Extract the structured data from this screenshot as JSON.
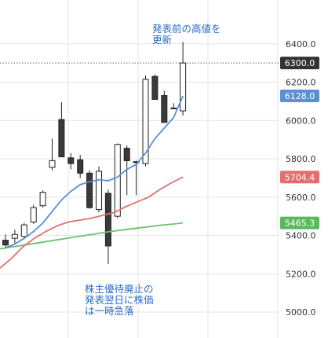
{
  "chart_data": {
    "type": "candlestick",
    "ylim": [
      4900,
      6500
    ],
    "y_ticks": [
      5000,
      5200,
      5400,
      5600,
      5800,
      6000,
      6200,
      6400
    ],
    "y_tick_labels": [
      "5000.0",
      "5200.0",
      "5400.0",
      "5600.0",
      "5800.0",
      "6000.0",
      "6200.0",
      "6400.0"
    ],
    "candles": [
      {
        "o": 5375,
        "h": 5405,
        "l": 5330,
        "c": 5350
      },
      {
        "o": 5385,
        "h": 5430,
        "l": 5360,
        "c": 5405
      },
      {
        "o": 5395,
        "h": 5465,
        "l": 5380,
        "c": 5455
      },
      {
        "o": 5470,
        "h": 5560,
        "l": 5460,
        "c": 5545
      },
      {
        "o": 5555,
        "h": 5635,
        "l": 5545,
        "c": 5625
      },
      {
        "o": 5755,
        "h": 5905,
        "l": 5740,
        "c": 5790
      },
      {
        "o": 6005,
        "h": 6095,
        "l": 5810,
        "c": 5810
      },
      {
        "o": 5805,
        "h": 5830,
        "l": 5745,
        "c": 5775
      },
      {
        "o": 5795,
        "h": 5820,
        "l": 5700,
        "c": 5725
      },
      {
        "o": 5725,
        "h": 5740,
        "l": 5540,
        "c": 5545
      },
      {
        "o": 5535,
        "h": 5760,
        "l": 5520,
        "c": 5735
      },
      {
        "o": 5620,
        "h": 5640,
        "l": 5250,
        "c": 5345
      },
      {
        "o": 5500,
        "h": 5880,
        "l": 5490,
        "c": 5875
      },
      {
        "o": 5855,
        "h": 5870,
        "l": 5610,
        "c": 5790
      },
      {
        "o": 5785,
        "h": 5790,
        "l": 5610,
        "c": 5780
      },
      {
        "o": 5775,
        "h": 6235,
        "l": 5760,
        "c": 6215
      },
      {
        "o": 6230,
        "h": 6240,
        "l": 6110,
        "c": 6110
      },
      {
        "o": 6130,
        "h": 6155,
        "l": 5990,
        "c": 5990
      },
      {
        "o": 6065,
        "h": 6090,
        "l": 6060,
        "c": 6065
      },
      {
        "o": 6050,
        "h": 6410,
        "l": 6025,
        "c": 6300
      }
    ],
    "ma_short": [
      5335,
      5355,
      5385,
      5420,
      5465,
      5525,
      5585,
      5630,
      5665,
      5680,
      5690,
      5685,
      5705,
      5745,
      5770,
      5830,
      5905,
      5960,
      6015,
      6128
    ],
    "ma_mid": [
      5230,
      5280,
      5340,
      5385,
      5420,
      5450,
      5470,
      5480,
      5490,
      5505,
      5520,
      5550,
      5575,
      5600,
      5640,
      5675,
      5704.4
    ],
    "ma_long": [
      5330,
      5340,
      5350,
      5360,
      5370,
      5380,
      5390,
      5400,
      5410,
      5420,
      5428,
      5436,
      5444,
      5452,
      5458,
      5465.3
    ],
    "current_price": 6300.0,
    "price_labels": [
      {
        "value": 6300.0,
        "text": "6300.0",
        "color": "#333333"
      },
      {
        "value": 6128.0,
        "text": "6128.0",
        "color": "#5b8fd6"
      },
      {
        "value": 5704.4,
        "text": "5704.4",
        "color": "#e07070"
      },
      {
        "value": 5465.3,
        "text": "5465.3",
        "color": "#5cb85c"
      }
    ],
    "colors": {
      "ma_short": "#5b8fd6",
      "ma_mid": "#e07070",
      "ma_long": "#6cc26c",
      "candle": "#222222",
      "grid": "#e4e4e4",
      "note": "#2b6cc4"
    }
  },
  "annotations": {
    "top_note": "発表前の高値を\n更新",
    "bottom_note": "株主優待廃止の\n発表翌日に株価\nは一時急落"
  }
}
